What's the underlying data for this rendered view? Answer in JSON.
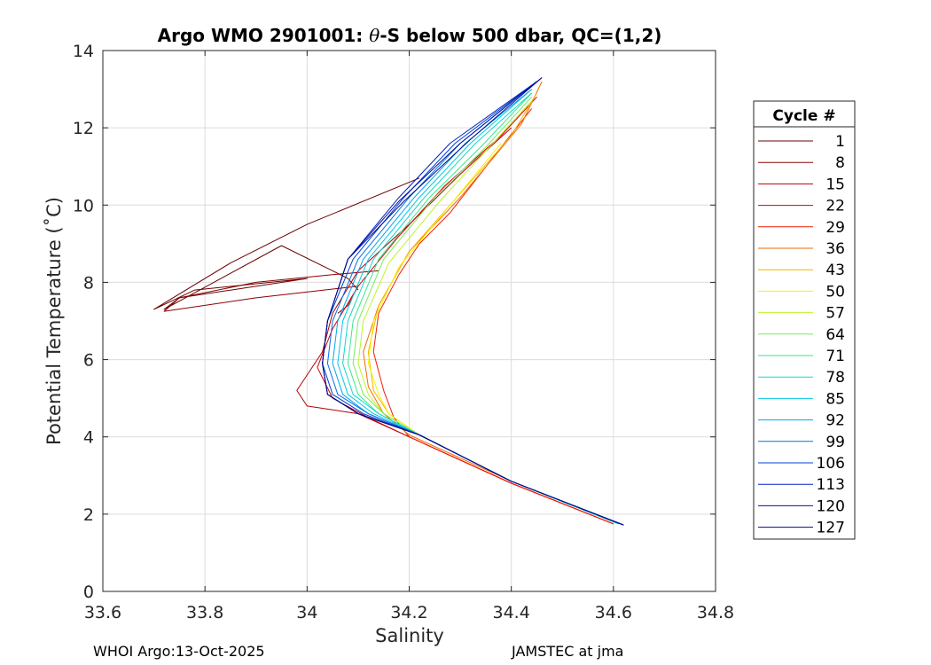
{
  "chart_data": {
    "type": "line",
    "title_parts": {
      "prefix": "Argo WMO 2901001: ",
      "theta": "θ",
      "suffix": "-S below 500 dbar,  QC=(1,2)"
    },
    "xlabel": "Salinity",
    "ylabel": "Potential Temperature (˚C)",
    "xlim": [
      33.6,
      34.8
    ],
    "ylim": [
      0,
      14
    ],
    "xticks": [
      33.6,
      33.8,
      34,
      34.2,
      34.4,
      34.6,
      34.8
    ],
    "xtick_labels": [
      "33.6",
      "33.8",
      "34",
      "34.2",
      "34.4",
      "34.6",
      "34.8"
    ],
    "yticks": [
      0,
      2,
      4,
      6,
      8,
      10,
      12,
      14
    ],
    "ytick_labels": [
      "0",
      "2",
      "4",
      "6",
      "8",
      "10",
      "12",
      "14"
    ],
    "grid": true,
    "legend": {
      "title": "Cycle #",
      "placement": "outside-right",
      "entries": [
        {
          "label": "1",
          "color": "#6a0000"
        },
        {
          "label": "8",
          "color": "#8c0000"
        },
        {
          "label": "15",
          "color": "#b00000"
        },
        {
          "label": "22",
          "color": "#d40000"
        },
        {
          "label": "29",
          "color": "#f21d00"
        },
        {
          "label": "36",
          "color": "#f26b00"
        },
        {
          "label": "43",
          "color": "#f7b400"
        },
        {
          "label": "50",
          "color": "#f5f500"
        },
        {
          "label": "57",
          "color": "#bff22c"
        },
        {
          "label": "64",
          "color": "#78ec5e"
        },
        {
          "label": "71",
          "color": "#3ae690"
        },
        {
          "label": "78",
          "color": "#14d8c4"
        },
        {
          "label": "85",
          "color": "#06c6e6"
        },
        {
          "label": "92",
          "color": "#03a4ef"
        },
        {
          "label": "99",
          "color": "#0270e8"
        },
        {
          "label": "106",
          "color": "#0240d6"
        },
        {
          "label": "113",
          "color": "#0220c0"
        },
        {
          "label": "120",
          "color": "#0010a8"
        },
        {
          "label": "127",
          "color": "#000c88"
        }
      ]
    },
    "series": [
      {
        "name": "1",
        "color": "#6a0000",
        "x": [
          34.22,
          34.0,
          33.85,
          33.7,
          33.78,
          34.0,
          33.75,
          33.72,
          33.95,
          34.05,
          34.08,
          34.1
        ],
        "y": [
          10.7,
          9.5,
          8.5,
          7.3,
          7.8,
          8.1,
          7.6,
          7.3,
          8.95,
          8.3,
          8.1,
          7.8
        ]
      },
      {
        "name": "8",
        "color": "#8c0000",
        "x": [
          34.14,
          34.05,
          33.9,
          33.75,
          33.72,
          33.9,
          34.1,
          34.08,
          34.06
        ],
        "y": [
          8.3,
          8.2,
          8.0,
          7.6,
          7.25,
          7.6,
          7.9,
          7.4,
          7.2
        ]
      },
      {
        "name": "15",
        "color": "#b00000",
        "x": [
          34.6,
          34.4,
          34.2,
          34.1,
          34.0,
          33.98,
          34.03,
          34.05,
          34.1,
          34.2,
          34.3,
          34.4
        ],
        "y": [
          1.75,
          2.8,
          4.0,
          4.6,
          4.8,
          5.2,
          6.2,
          7.2,
          8.3,
          9.5,
          10.8,
          12.0
        ]
      },
      {
        "name": "22",
        "color": "#d40000",
        "x": [
          34.6,
          34.4,
          34.2,
          34.12,
          34.05,
          34.02,
          34.05,
          34.1,
          34.18,
          34.27,
          34.38,
          34.45
        ],
        "y": [
          1.75,
          2.8,
          4.0,
          4.5,
          5.0,
          5.8,
          6.8,
          7.9,
          9.2,
          10.5,
          11.8,
          12.8
        ]
      },
      {
        "name": "29",
        "color": "#f21d00",
        "x": [
          34.6,
          34.4,
          34.2,
          34.17,
          34.15,
          34.13,
          34.14,
          34.18,
          34.22,
          34.28,
          34.38,
          34.44
        ],
        "y": [
          1.75,
          2.8,
          4.0,
          4.5,
          5.2,
          6.2,
          7.2,
          8.2,
          9.0,
          9.8,
          11.5,
          12.5
        ]
      },
      {
        "name": "36",
        "color": "#f26b00",
        "x": [
          34.61,
          34.4,
          34.2,
          34.15,
          34.12,
          34.11,
          34.14,
          34.2,
          34.3,
          34.42,
          34.46
        ],
        "y": [
          1.75,
          2.85,
          4.05,
          4.6,
          5.3,
          6.2,
          7.4,
          8.8,
          10.2,
          12.1,
          13.2
        ]
      },
      {
        "name": "43",
        "color": "#f7b400",
        "x": [
          34.61,
          34.4,
          34.22,
          34.16,
          34.13,
          34.12,
          34.14,
          34.2,
          34.3,
          34.4,
          34.45
        ],
        "y": [
          1.75,
          2.85,
          4.05,
          4.6,
          5.2,
          6.2,
          7.4,
          8.8,
          10.3,
          11.8,
          12.9
        ]
      },
      {
        "name": "50",
        "color": "#f5f500",
        "x": [
          34.61,
          34.4,
          34.22,
          34.16,
          34.14,
          34.12,
          34.13,
          34.18,
          34.28,
          34.38
        ],
        "y": [
          1.75,
          2.85,
          4.05,
          4.6,
          5.1,
          5.9,
          7.0,
          8.4,
          10.0,
          11.6
        ]
      },
      {
        "name": "57",
        "color": "#bff22c",
        "x": [
          34.61,
          34.4,
          34.22,
          34.15,
          34.12,
          34.1,
          34.11,
          34.16,
          34.26,
          34.35,
          34.44
        ],
        "y": [
          1.75,
          2.85,
          4.05,
          4.6,
          5.1,
          5.9,
          7.0,
          8.5,
          10.1,
          11.4,
          12.7
        ]
      },
      {
        "name": "64",
        "color": "#78ec5e",
        "x": [
          34.61,
          34.4,
          34.22,
          34.15,
          34.11,
          34.09,
          34.1,
          34.15,
          34.25,
          34.35,
          34.44
        ],
        "y": [
          1.75,
          2.85,
          4.05,
          4.6,
          5.1,
          5.9,
          7.0,
          8.6,
          10.2,
          11.5,
          12.8
        ]
      },
      {
        "name": "71",
        "color": "#3ae690",
        "x": [
          34.61,
          34.4,
          34.22,
          34.14,
          34.1,
          34.08,
          34.09,
          34.14,
          34.24,
          34.34,
          34.44
        ],
        "y": [
          1.75,
          2.85,
          4.05,
          4.6,
          5.1,
          5.9,
          7.0,
          8.6,
          10.2,
          11.5,
          12.9
        ]
      },
      {
        "name": "78",
        "color": "#14d8c4",
        "x": [
          34.61,
          34.4,
          34.22,
          34.14,
          34.09,
          34.07,
          34.08,
          34.13,
          34.23,
          34.33,
          34.44
        ],
        "y": [
          1.75,
          2.85,
          4.05,
          4.6,
          5.1,
          5.9,
          7.0,
          8.6,
          10.2,
          11.6,
          12.9
        ]
      },
      {
        "name": "85",
        "color": "#06c6e6",
        "x": [
          34.61,
          34.4,
          34.22,
          34.13,
          34.08,
          34.06,
          34.07,
          34.12,
          34.22,
          34.32,
          34.44
        ],
        "y": [
          1.75,
          2.85,
          4.05,
          4.6,
          5.1,
          5.9,
          7.0,
          8.6,
          10.2,
          11.6,
          13.0
        ]
      },
      {
        "name": "92",
        "color": "#03a4ef",
        "x": [
          34.62,
          34.4,
          34.22,
          34.12,
          34.07,
          34.05,
          34.06,
          34.11,
          34.21,
          34.31,
          34.44
        ],
        "y": [
          1.72,
          2.85,
          4.05,
          4.6,
          5.1,
          5.9,
          7.0,
          8.6,
          10.2,
          11.6,
          13.0
        ]
      },
      {
        "name": "99",
        "color": "#0270e8",
        "x": [
          34.62,
          34.4,
          34.22,
          34.12,
          34.06,
          34.04,
          34.05,
          34.1,
          34.2,
          34.3,
          34.44
        ],
        "y": [
          1.72,
          2.85,
          4.05,
          4.6,
          5.1,
          5.9,
          7.0,
          8.6,
          10.2,
          11.6,
          13.1
        ]
      },
      {
        "name": "106",
        "color": "#0240d6",
        "x": [
          34.62,
          34.4,
          34.22,
          34.11,
          34.05,
          34.03,
          34.04,
          34.09,
          34.19,
          34.29,
          34.45
        ],
        "y": [
          1.72,
          2.85,
          4.05,
          4.6,
          5.1,
          5.9,
          7.0,
          8.6,
          10.2,
          11.6,
          13.2
        ]
      },
      {
        "name": "113",
        "color": "#0220c0",
        "x": [
          34.62,
          34.4,
          34.22,
          34.1,
          34.04,
          34.03,
          34.04,
          34.08,
          34.18,
          34.28,
          34.45
        ],
        "y": [
          1.72,
          2.85,
          4.05,
          4.6,
          5.1,
          5.9,
          7.0,
          8.6,
          10.2,
          11.6,
          13.2
        ]
      },
      {
        "name": "120",
        "color": "#0010a8",
        "x": [
          34.62,
          34.4,
          34.22,
          34.1,
          34.04,
          34.03,
          34.04,
          34.08,
          34.18,
          34.3,
          34.46
        ],
        "y": [
          1.72,
          2.85,
          4.05,
          4.6,
          5.1,
          5.9,
          7.0,
          8.6,
          10.1,
          11.6,
          13.3
        ]
      },
      {
        "name": "127",
        "color": "#000c88",
        "x": [
          34.62,
          34.4,
          34.22,
          34.1,
          34.04,
          34.03,
          34.04,
          34.08,
          34.19,
          34.32,
          34.46
        ],
        "y": [
          1.72,
          2.85,
          4.05,
          4.6,
          5.1,
          5.9,
          7.0,
          8.6,
          10.1,
          11.7,
          13.3
        ]
      }
    ]
  },
  "footer": {
    "left": "WHOI Argo:13-Oct-2025",
    "right": "JAMSTEC at jma"
  }
}
